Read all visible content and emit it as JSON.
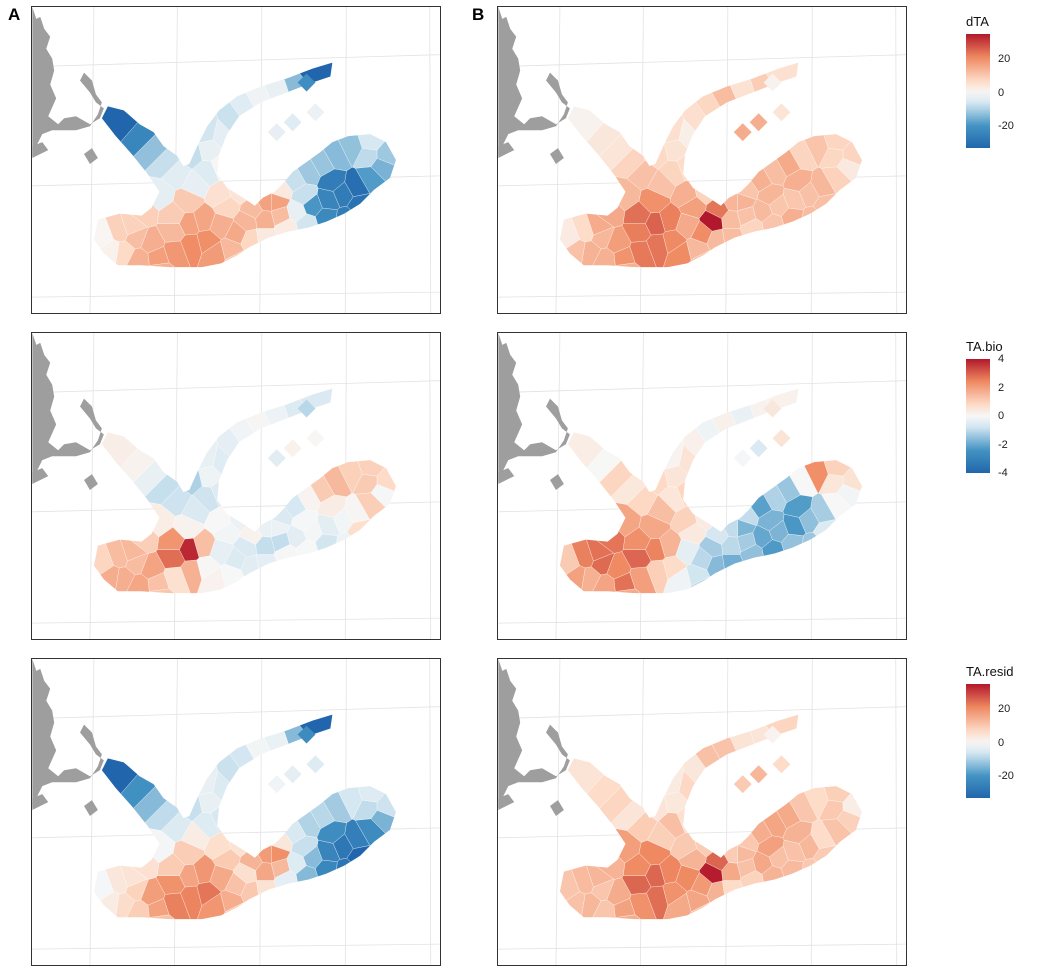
{
  "column_labels": [
    "A",
    "B"
  ],
  "colors": {
    "land": "#9e9e9e",
    "grid": "#e2e2e2",
    "frame": "#333333",
    "low": "#2166ac",
    "mid": "#f7f7f7",
    "high": "#b2182b"
  },
  "rows": [
    {
      "variable": "dTA",
      "legend": {
        "title": "dTA",
        "min": -33,
        "max": 35,
        "ticks": [
          20,
          0,
          -20
        ]
      },
      "panels": [
        {
          "column": "A",
          "pattern": "dta_a"
        },
        {
          "column": "B",
          "pattern": "dta_b"
        }
      ]
    },
    {
      "variable": "TA.bio",
      "legend": {
        "title": "TA.bio",
        "min": -4,
        "max": 4,
        "ticks": [
          4,
          2,
          0,
          -2,
          -4
        ]
      },
      "panels": [
        {
          "column": "A",
          "pattern": "bio_a"
        },
        {
          "column": "B",
          "pattern": "bio_b"
        }
      ]
    },
    {
      "variable": "TA.resid",
      "legend": {
        "title": "TA.resid",
        "min": -33,
        "max": 35,
        "ticks": [
          20,
          0,
          -20
        ]
      },
      "panels": [
        {
          "column": "A",
          "pattern": "resid_a"
        },
        {
          "column": "B",
          "pattern": "resid_b"
        }
      ]
    }
  ]
}
